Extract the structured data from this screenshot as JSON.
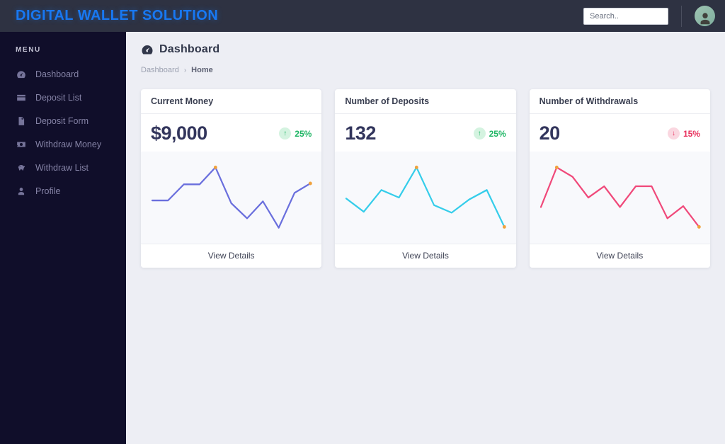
{
  "topbar": {
    "title": "DIGITAL WALLET SOLUTION",
    "search_placeholder": "Search..",
    "bg_color": "#2e3242",
    "title_color": "#1878f2"
  },
  "sidebar": {
    "menu_label": "MENU",
    "bg_color": "#100e2a",
    "items": [
      {
        "label": "Dashboard",
        "icon": "tachometer-icon"
      },
      {
        "label": "Deposit List",
        "icon": "credit-card-icon"
      },
      {
        "label": "Deposit Form",
        "icon": "file-icon"
      },
      {
        "label": "Withdraw Money",
        "icon": "money-bill-icon"
      },
      {
        "label": "Withdraw List",
        "icon": "piggy-bank-icon"
      },
      {
        "label": "Profile",
        "icon": "user-icon"
      }
    ]
  },
  "main": {
    "page_title": "Dashboard",
    "breadcrumb": {
      "root": "Dashboard",
      "separator": "›",
      "current": "Home"
    }
  },
  "cards": [
    {
      "title": "Current Money",
      "value": "$9,000",
      "badge": {
        "direction": "up",
        "text": "25%",
        "color": "#1eb564"
      },
      "footer": "View Details",
      "line_color": "#6a6fdd"
    },
    {
      "title": "Number of Deposits",
      "value": "132",
      "badge": {
        "direction": "up",
        "text": "25%",
        "color": "#1eb564"
      },
      "footer": "View Details",
      "line_color": "#35cdea"
    },
    {
      "title": "Number of Withdrawals",
      "value": "20",
      "badge": {
        "direction": "down",
        "text": "15%",
        "color": "#e8325e"
      },
      "footer": "View Details",
      "line_color": "#f0497a"
    }
  ],
  "chart_data": [
    {
      "type": "line",
      "title": "Current Money trend",
      "x": [
        1,
        2,
        3,
        4,
        5,
        6,
        7,
        8,
        9,
        10,
        11
      ],
      "values": [
        32,
        32,
        49,
        49,
        67,
        29,
        13,
        31,
        3,
        40,
        50
      ],
      "line_color": "#6a6fdd",
      "marker_color": "#f0a23c",
      "grid": false,
      "axes_visible": false,
      "legend": "none"
    },
    {
      "type": "line",
      "title": "Number of Deposits trend",
      "x": [
        1,
        2,
        3,
        4,
        5,
        6,
        7,
        8,
        9,
        10
      ],
      "values": [
        34,
        20,
        43,
        35,
        67,
        27,
        19,
        33,
        43,
        4
      ],
      "line_color": "#35cdea",
      "marker_color": "#f0a23c",
      "grid": false,
      "axes_visible": false,
      "legend": "none"
    },
    {
      "type": "line",
      "title": "Number of Withdrawals trend",
      "x": [
        1,
        2,
        3,
        4,
        5,
        6,
        7,
        8,
        9,
        10,
        11
      ],
      "values": [
        25,
        67,
        57,
        35,
        47,
        25,
        47,
        47,
        13,
        26,
        4
      ],
      "line_color": "#f0497a",
      "marker_color": "#f0a23c",
      "grid": false,
      "axes_visible": false,
      "legend": "none"
    }
  ]
}
